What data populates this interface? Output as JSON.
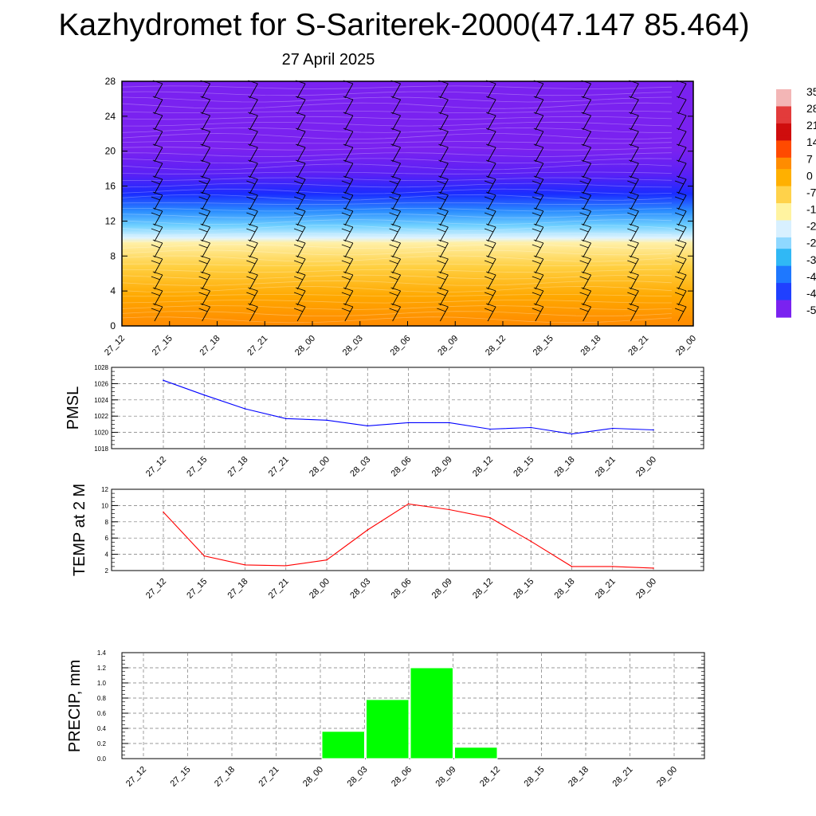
{
  "title": "Kazhydromet for S-Sariterek-2000(47.147 85.464)",
  "subtitle": "27 April 2025",
  "colors": {
    "pmsl_line": "#0000ff",
    "temp_line": "#ff0000",
    "precip_bar": "#00ff00"
  },
  "chart_data": [
    {
      "type": "heatmap",
      "name": "vertical cross-section",
      "x": [
        "27_12",
        "27_15",
        "27_18",
        "27_21",
        "28_00",
        "28_03",
        "28_06",
        "28_09",
        "28_12",
        "28_15",
        "28_18",
        "28_21",
        "29_00"
      ],
      "ylim": [
        0,
        28
      ],
      "yticks": [
        0,
        4,
        8,
        12,
        16,
        20,
        24,
        28
      ],
      "colorbar_labels": [
        "35",
        "28",
        "21",
        "14",
        "7",
        "0",
        "-7",
        "-1",
        "-2",
        "-2",
        "-3",
        "-4",
        "-4",
        "-5"
      ],
      "colorbar_colors": [
        "#f3b6b6",
        "#e33b3b",
        "#cf0d0d",
        "#ff4a00",
        "#ff8c00",
        "#ffb000",
        "#ffd24a",
        "#fff3a0",
        "#d8f0ff",
        "#8fd8ff",
        "#30b8f5",
        "#1e78ff",
        "#2040ff",
        "#7a22f0"
      ]
    },
    {
      "type": "line",
      "ylabel": "PMSL",
      "x": [
        "27_12",
        "27_15",
        "27_18",
        "27_21",
        "28_00",
        "28_03",
        "28_06",
        "28_09",
        "28_12",
        "28_15",
        "28_18",
        "28_21",
        "29_00"
      ],
      "values": [
        1026.4,
        1024.6,
        1022.9,
        1021.7,
        1021.5,
        1020.8,
        1021.2,
        1021.2,
        1020.4,
        1020.6,
        1019.8,
        1020.5,
        1020.3
      ],
      "ylim": [
        1018,
        1028
      ],
      "yticks": [
        1018,
        1020,
        1022,
        1024,
        1026,
        1028
      ]
    },
    {
      "type": "line",
      "ylabel": "TEMP at 2 M",
      "x": [
        "27_12",
        "27_15",
        "27_18",
        "27_21",
        "28_00",
        "28_03",
        "28_06",
        "28_09",
        "28_12",
        "28_15",
        "28_18",
        "28_21",
        "29_00"
      ],
      "values": [
        9.2,
        3.8,
        2.7,
        2.6,
        3.3,
        7.0,
        10.2,
        9.5,
        8.5,
        5.6,
        2.5,
        2.5,
        2.3
      ],
      "ylim": [
        2,
        12
      ],
      "yticks": [
        2,
        4,
        6,
        8,
        10,
        12
      ]
    },
    {
      "type": "bar",
      "ylabel": "PRECIP, mm",
      "categories": [
        "27_12",
        "27_15",
        "27_18",
        "27_21",
        "28_00",
        "28_03",
        "28_06",
        "28_09",
        "28_12",
        "28_15",
        "28_18",
        "28_21",
        "29_00"
      ],
      "values": [
        0,
        0,
        0,
        0,
        0,
        0.36,
        0.78,
        1.2,
        0.15,
        0,
        0,
        0,
        0
      ],
      "ylim": [
        0,
        1.4
      ],
      "yticks": [
        "0.0",
        "0.2",
        "0.4",
        "0.6",
        "0.8",
        "1.0",
        "1.2",
        "1.4"
      ]
    }
  ]
}
